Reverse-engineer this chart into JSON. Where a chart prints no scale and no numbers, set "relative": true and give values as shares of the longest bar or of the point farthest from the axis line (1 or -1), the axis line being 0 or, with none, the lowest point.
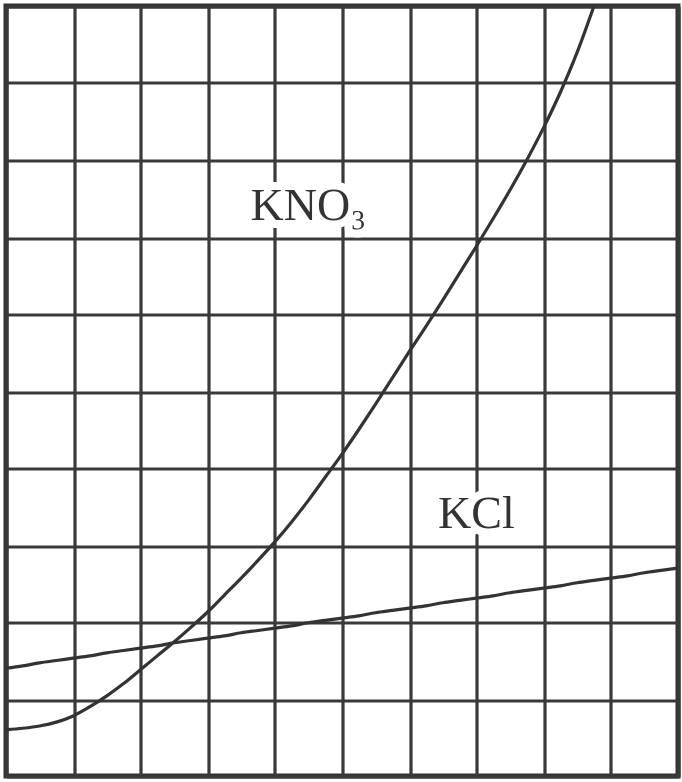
{
  "chart_data": {
    "type": "line",
    "relative": true,
    "grid": true,
    "marker": "none",
    "line_style": "solid",
    "categories": [
      null,
      null,
      null,
      null,
      null,
      null,
      null,
      null,
      null,
      null,
      null,
      null,
      null,
      null,
      null,
      null,
      null,
      null,
      null,
      null,
      null,
      null,
      null,
      null,
      null,
      null,
      null,
      null,
      null,
      null,
      null,
      null,
      null,
      null,
      null,
      null,
      null,
      null,
      null,
      null,
      null
    ],
    "series": [
      {
        "name": "KNO₃",
        "color": "#333333",
        "values": [
          0.06,
          0.062,
          0.065,
          0.07,
          0.078,
          0.09,
          0.104,
          0.12,
          0.138,
          0.156,
          0.174,
          0.193,
          0.213,
          0.235,
          0.257,
          0.28,
          0.304,
          0.33,
          0.358,
          0.388,
          0.418,
          0.45,
          0.483,
          0.517,
          0.551,
          0.584,
          0.618,
          0.653,
          0.688,
          0.724,
          0.761,
          0.8,
          0.842,
          0.888,
          0.94,
          1.0,
          null,
          null,
          null,
          null,
          null
        ]
      },
      {
        "name": "KCl",
        "color": "#333333",
        "values": [
          0.14,
          0.143,
          0.147,
          0.15,
          0.153,
          0.156,
          0.16,
          0.163,
          0.166,
          0.169,
          0.173,
          0.176,
          0.179,
          0.182,
          0.186,
          0.189,
          0.192,
          0.195,
          0.199,
          0.202,
          0.205,
          0.208,
          0.212,
          0.215,
          0.218,
          0.221,
          0.225,
          0.228,
          0.231,
          0.234,
          0.238,
          0.241,
          0.244,
          0.247,
          0.251,
          0.254,
          0.257,
          0.26,
          0.264,
          0.267,
          0.27
        ]
      }
    ]
  }
}
